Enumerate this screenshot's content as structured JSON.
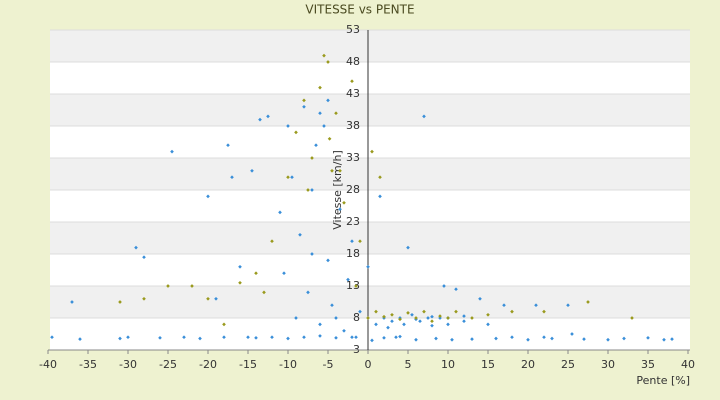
{
  "chart_data": {
    "type": "scatter",
    "title": "VITESSE vs PENTE",
    "x_label": "Pente [%]",
    "y_label": "Vitesse [km/h]",
    "xlim": [
      -40,
      40
    ],
    "xticks": [
      -40,
      -35,
      -30,
      -25,
      -20,
      -15,
      -10,
      -5,
      0,
      5,
      10,
      15,
      20,
      25,
      30,
      35,
      40
    ],
    "ylim": [
      3,
      53
    ],
    "yticks": [
      3,
      8,
      13,
      18,
      23,
      28,
      33,
      38,
      43,
      48,
      53
    ],
    "grid": true,
    "series": [
      {
        "color": "#3a8fd9",
        "x": [
          -39.5,
          -37,
          -36,
          -31,
          -30,
          -29,
          -28,
          -26,
          -24.5,
          -23,
          -21,
          -20,
          -19,
          -18,
          -17.5,
          -17,
          -16,
          -15,
          -14.5,
          -14,
          -13.5,
          -12.5,
          -12,
          -11,
          -10.5,
          -10,
          -9.5,
          -9,
          -8.5,
          -8,
          -7.5,
          -7,
          -6.5,
          -6,
          -5.5,
          -5,
          -4.5,
          -4,
          -3.5,
          -3,
          -2.5,
          -2,
          -1.5,
          -1,
          0,
          0.5,
          1,
          1.5,
          2,
          2.5,
          3,
          3.5,
          4,
          4.5,
          5,
          5.5,
          6,
          6.5,
          7,
          7.5,
          8,
          8.5,
          9,
          9.5,
          10,
          10.5,
          11,
          12,
          13,
          14,
          15,
          16,
          17,
          18,
          20,
          21,
          22,
          23,
          25,
          25.5,
          27,
          30,
          32,
          35,
          37,
          38,
          -8,
          -6,
          -4,
          -2,
          2,
          4,
          6,
          8,
          10,
          12,
          -10,
          -7,
          -5,
          -6
        ],
        "y": [
          5,
          10.5,
          4.7,
          4.8,
          5,
          19,
          17.5,
          4.9,
          34,
          5,
          4.8,
          27,
          11,
          5,
          35,
          30,
          16,
          5,
          31,
          4.9,
          39,
          39.5,
          5,
          24.5,
          15,
          38,
          30,
          8,
          21,
          41,
          12,
          28,
          35,
          7,
          38,
          17,
          10,
          8,
          25,
          6,
          14,
          20,
          5,
          9,
          16,
          4.5,
          7,
          27,
          8,
          6.5,
          7.5,
          5,
          8,
          7,
          19,
          8.5,
          4.6,
          7.5,
          39.5,
          8,
          6.8,
          4.8,
          8,
          13,
          7,
          4.6,
          12.5,
          7.5,
          4.7,
          11,
          7,
          4.8,
          10,
          5,
          4.6,
          10,
          5,
          4.8,
          10,
          5.5,
          4.7,
          4.6,
          4.8,
          4.9,
          4.6,
          4.7,
          5,
          5.2,
          4.9,
          5,
          4.9,
          5.1,
          7.8,
          8.2,
          8,
          8.3,
          4.8,
          18,
          42,
          40
        ]
      },
      {
        "color": "#9a9a1e",
        "x": [
          -31,
          -28,
          -25,
          -22,
          -16,
          -14,
          -12,
          -10,
          -9,
          -8,
          -7.5,
          -7,
          -6,
          -5.5,
          -5,
          -4.8,
          -4.5,
          -4,
          -3.5,
          -3,
          -2,
          -1.5,
          -1,
          0,
          0.5,
          1,
          1.5,
          2,
          3,
          4,
          5,
          6,
          7,
          8,
          9,
          10,
          11,
          13,
          15,
          18,
          22,
          27.5,
          33,
          -13,
          -18,
          -20
        ],
        "y": [
          10.5,
          11,
          13,
          13,
          13.5,
          15,
          20,
          30,
          37,
          42,
          28,
          33,
          44,
          49,
          48,
          36,
          31,
          40,
          31,
          26,
          45,
          13,
          20,
          8,
          34,
          9,
          30,
          8.2,
          8.5,
          7.8,
          8.8,
          8,
          9,
          7.5,
          8.3,
          8,
          9,
          8,
          8.5,
          9,
          9,
          10.5,
          8,
          12,
          7,
          11
        ]
      }
    ]
  }
}
